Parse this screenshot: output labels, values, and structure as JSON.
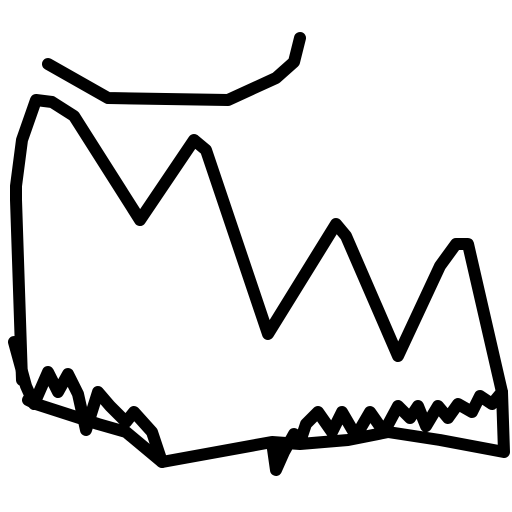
{
  "drawing": {
    "background": "#ffffff",
    "ink": "#000000",
    "strokes": [
      "top-arc",
      "crown-outline",
      "bottom-zigzag"
    ]
  }
}
